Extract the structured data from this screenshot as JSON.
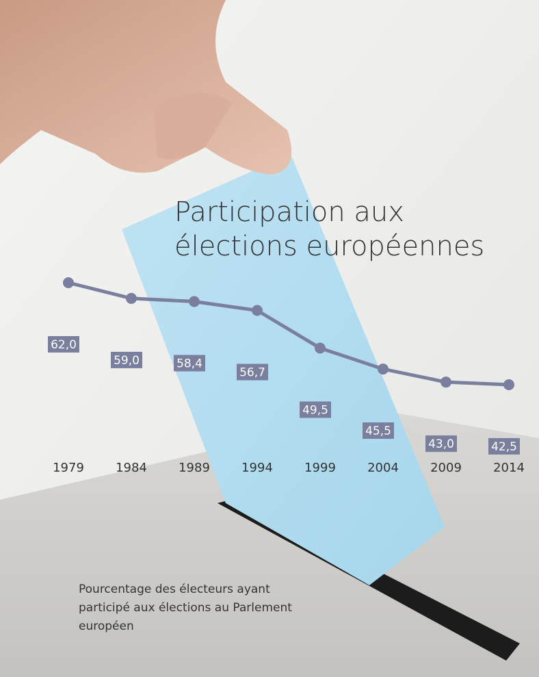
{
  "chart_data": {
    "type": "line",
    "title": "Participation aux élections européennes",
    "caption": "Pourcentage des électeurs ayant participé aux élections au Parlement européen",
    "categories": [
      "1979",
      "1984",
      "1989",
      "1994",
      "1999",
      "2004",
      "2009",
      "2014"
    ],
    "values": [
      62.0,
      59.0,
      58.4,
      56.7,
      49.5,
      45.5,
      43.0,
      42.5
    ],
    "value_labels": [
      "62,0",
      "59,0",
      "58,4",
      "56,7",
      "49,5",
      "45,5",
      "43,0",
      "42,5"
    ],
    "color": "#7a7f9e"
  }
}
